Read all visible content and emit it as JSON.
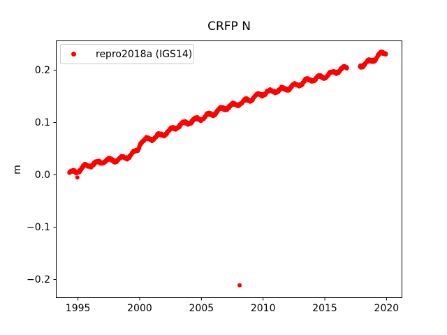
{
  "chart_data": {
    "type": "scatter",
    "title": "CRFP N",
    "xlabel": "",
    "ylabel": "m",
    "grid": false,
    "xlim": [
      1993.21,
      2021.28
    ],
    "ylim": [
      -0.2353,
      0.2567
    ],
    "xticks": [
      1995,
      2000,
      2005,
      2010,
      2015,
      2020
    ],
    "xtick_labels": [
      "1995",
      "2000",
      "2005",
      "2010",
      "2015",
      "2020"
    ],
    "yticks": [
      -0.2,
      -0.1,
      0.0,
      0.1,
      0.2
    ],
    "ytick_labels": [
      "−0.2",
      "−0.1",
      "0.0",
      "0.1",
      "0.2"
    ],
    "axes_color": "#000000",
    "legend": {
      "position": "upper left",
      "entries": [
        {
          "label": "repro2018a (IGS14)",
          "marker": "dot",
          "color": "#ff0000"
        }
      ]
    },
    "series": [
      {
        "name": "repro2018a (IGS14)",
        "color": "#ff0000",
        "marker": "dot",
        "marker_radius_px": 3,
        "samples_per_year": 55,
        "seasonal_amplitude": 0.0035,
        "irregular_amplitude": 0.0015,
        "noise_amplitude": 0.0025,
        "segments": [
          [
            1994.3,
            2016.8
          ],
          [
            2017.85,
            2019.95
          ]
        ],
        "trend_keypoints": [
          [
            1994.3,
            0.003
          ],
          [
            1995.0,
            0.009
          ],
          [
            1995.6,
            0.018
          ],
          [
            1996.5,
            0.021
          ],
          [
            1997.5,
            0.027
          ],
          [
            1998.5,
            0.032
          ],
          [
            1999.3,
            0.038
          ],
          [
            1999.85,
            0.046
          ],
          [
            2000.05,
            0.061
          ],
          [
            2001.0,
            0.07
          ],
          [
            2002.0,
            0.08
          ],
          [
            2003.0,
            0.091
          ],
          [
            2004.0,
            0.1
          ],
          [
            2005.0,
            0.11
          ],
          [
            2006.0,
            0.118
          ],
          [
            2007.0,
            0.127
          ],
          [
            2008.0,
            0.137
          ],
          [
            2009.0,
            0.146
          ],
          [
            2010.0,
            0.154
          ],
          [
            2011.0,
            0.161
          ],
          [
            2012.0,
            0.167
          ],
          [
            2013.0,
            0.173
          ],
          [
            2014.0,
            0.182
          ],
          [
            2015.0,
            0.19
          ],
          [
            2016.0,
            0.198
          ],
          [
            2016.8,
            0.203
          ],
          [
            2017.85,
            0.21
          ],
          [
            2018.5,
            0.216
          ],
          [
            2019.0,
            0.222
          ],
          [
            2019.5,
            0.229
          ],
          [
            2019.95,
            0.233
          ]
        ],
        "outliers": [
          [
            1994.95,
            -0.005
          ],
          [
            2008.1,
            -0.211
          ]
        ]
      }
    ]
  }
}
